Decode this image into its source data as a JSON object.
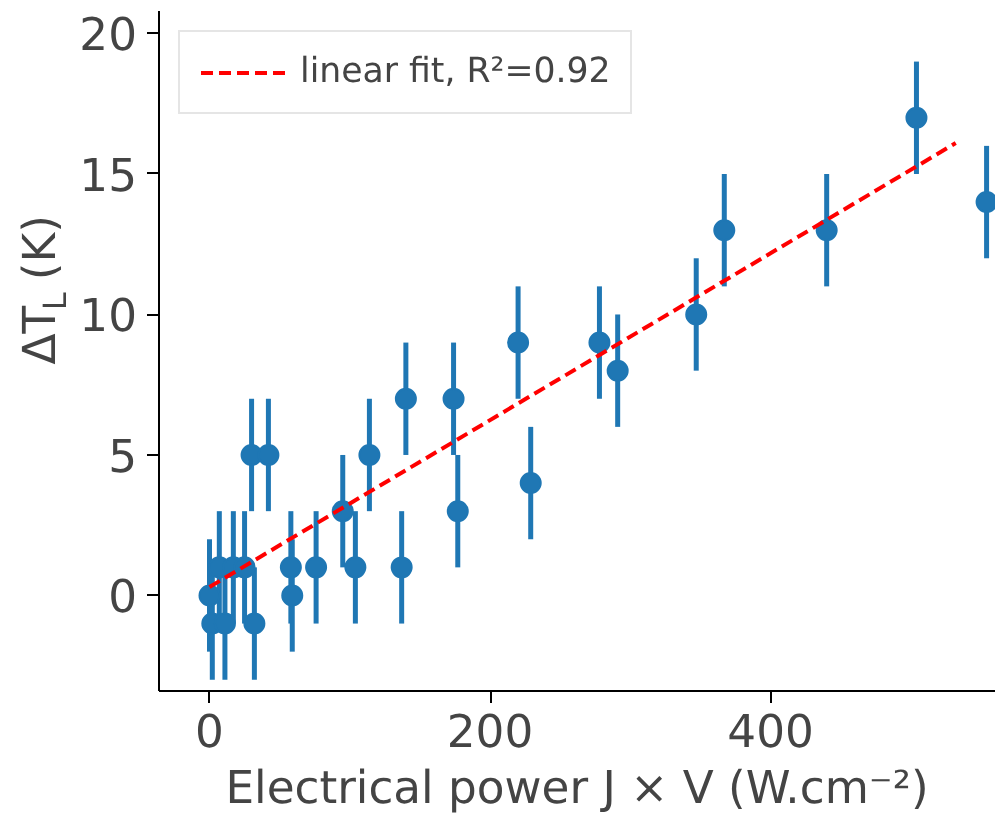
{
  "chart_data": {
    "type": "scatter",
    "xlabel": "Electrical power J × V (W.cm⁻²)",
    "ylabel": "ΔT$_{L}$ (K)",
    "xlim": [
      -36,
      560
    ],
    "ylim": [
      -3.4,
      20.8
    ],
    "xticks": [
      0,
      200,
      400
    ],
    "yticks": [
      0,
      5,
      10,
      15,
      20
    ],
    "grid": false,
    "legend": "top left",
    "series": [
      {
        "color": "#1f77b4",
        "marker": "circle",
        "x": [
          0,
          2,
          11,
          7,
          17,
          25,
          32,
          30,
          42,
          58,
          59,
          76,
          95,
          104,
          114,
          137,
          140,
          174,
          177,
          220,
          229,
          278,
          291,
          347,
          367,
          440,
          504,
          554
        ],
        "values": [
          0,
          -1,
          -1,
          1,
          1,
          1,
          -1,
          5,
          5,
          1,
          0,
          1,
          3,
          1,
          5,
          1,
          7,
          7,
          3,
          9,
          4,
          9,
          8,
          10,
          13,
          13,
          17,
          14
        ],
        "errors": [
          2,
          2,
          2,
          2,
          2,
          2,
          2,
          2,
          2,
          2,
          2,
          2,
          2,
          2,
          2,
          2,
          2,
          2,
          2,
          2,
          2,
          2,
          2,
          2,
          2,
          2,
          2,
          2
        ]
      },
      {
        "type": "line",
        "name": "linear fit, R²=0.92",
        "color": "#ff0000",
        "line_style": "dashed",
        "x": [
          0,
          532
        ],
        "values": [
          0.3,
          16.1
        ]
      }
    ]
  }
}
